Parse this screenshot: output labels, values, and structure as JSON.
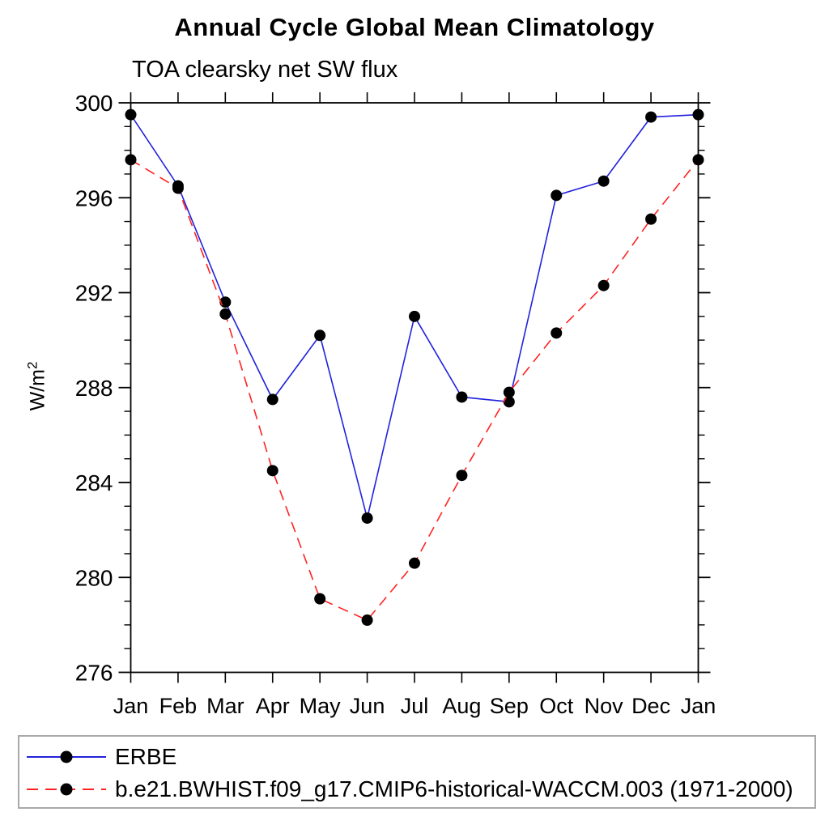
{
  "page": {
    "title": "Annual Cycle Global Mean Climatology",
    "subtitle": "TOA clearsky net SW flux"
  },
  "chart_data": {
    "type": "line",
    "title": "Annual Cycle Global Mean Climatology",
    "subtitle": "TOA clearsky net SW flux",
    "ylabel_base": "W/m",
    "ylabel_sup": "2",
    "x_categories": [
      "Jan",
      "Feb",
      "Mar",
      "Apr",
      "May",
      "Jun",
      "Jul",
      "Aug",
      "Sep",
      "Oct",
      "Nov",
      "Dec",
      "Jan"
    ],
    "ylim": [
      276,
      300
    ],
    "ytick_major": [
      276,
      280,
      284,
      288,
      292,
      296,
      300
    ],
    "ytick_minor_step": 1,
    "grid": "off",
    "legend_position": "bottom-left-box",
    "axis_color": "#000000",
    "marker_color": "#000000",
    "series": [
      {
        "name": "ERBE",
        "color": "#2222dd",
        "line_style": "solid",
        "marker": "circle",
        "values": [
          299.5,
          296.5,
          291.6,
          287.5,
          290.2,
          282.5,
          291.0,
          287.6,
          287.4,
          296.1,
          296.7,
          299.4,
          299.5
        ]
      },
      {
        "name": "b.e21.BWHIST.f09_g17.CMIP6-historical-WACCM.003 (1971-2000)",
        "color": "#ff2222",
        "line_style": "dashed",
        "marker": "circle",
        "values": [
          297.6,
          296.4,
          291.1,
          284.5,
          279.1,
          278.2,
          280.6,
          284.3,
          287.8,
          290.3,
          292.3,
          295.1,
          297.6
        ]
      }
    ]
  }
}
